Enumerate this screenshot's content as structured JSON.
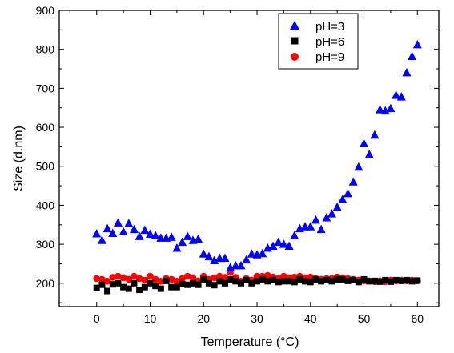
{
  "chart_data": {
    "type": "scatter",
    "xlabel": "Temperature (°C)",
    "ylabel": "Size (d.nm)",
    "xlim": [
      -7,
      64
    ],
    "ylim": [
      140,
      900
    ],
    "xticks": [
      0,
      10,
      20,
      30,
      40,
      50,
      60
    ],
    "yticks": [
      200,
      300,
      400,
      500,
      600,
      700,
      800,
      900
    ],
    "grid": false,
    "legend_position": "top-right",
    "series": [
      {
        "name": "pH=3",
        "marker": "triangle",
        "color": "#0000FF",
        "points": [
          [
            0,
            327
          ],
          [
            1,
            310
          ],
          [
            2,
            340
          ],
          [
            3,
            328
          ],
          [
            4,
            355
          ],
          [
            5,
            332
          ],
          [
            6,
            353
          ],
          [
            7,
            338
          ],
          [
            8,
            320
          ],
          [
            9,
            336
          ],
          [
            10,
            326
          ],
          [
            11,
            322
          ],
          [
            12,
            316
          ],
          [
            13,
            316
          ],
          [
            14,
            318
          ],
          [
            15,
            290
          ],
          [
            16,
            305
          ],
          [
            17,
            320
          ],
          [
            18,
            310
          ],
          [
            19,
            313
          ],
          [
            20,
            275
          ],
          [
            21,
            268
          ],
          [
            22,
            258
          ],
          [
            23,
            264
          ],
          [
            24,
            264
          ],
          [
            25,
            240
          ],
          [
            26,
            245
          ],
          [
            27,
            245
          ],
          [
            28,
            260
          ],
          [
            29,
            275
          ],
          [
            30,
            273
          ],
          [
            31,
            276
          ],
          [
            32,
            290
          ],
          [
            33,
            295
          ],
          [
            34,
            305
          ],
          [
            35,
            300
          ],
          [
            36,
            295
          ],
          [
            37,
            322
          ],
          [
            38,
            340
          ],
          [
            39,
            345
          ],
          [
            40,
            345
          ],
          [
            41,
            362
          ],
          [
            42,
            338
          ],
          [
            43,
            368
          ],
          [
            44,
            378
          ],
          [
            45,
            395
          ],
          [
            46,
            415
          ],
          [
            47,
            430
          ],
          [
            48,
            460
          ],
          [
            49,
            498
          ],
          [
            50,
            558
          ],
          [
            51,
            530
          ],
          [
            52,
            580
          ],
          [
            53,
            645
          ],
          [
            54,
            642
          ],
          [
            55,
            648
          ],
          [
            56,
            682
          ],
          [
            57,
            678
          ],
          [
            58,
            740
          ],
          [
            59,
            782
          ],
          [
            60,
            812
          ]
        ]
      },
      {
        "name": "pH=6",
        "marker": "square",
        "color": "#000000",
        "points": [
          [
            0,
            188
          ],
          [
            1,
            196
          ],
          [
            2,
            180
          ],
          [
            3,
            197
          ],
          [
            4,
            200
          ],
          [
            5,
            190
          ],
          [
            6,
            186
          ],
          [
            7,
            200
          ],
          [
            8,
            183
          ],
          [
            9,
            190
          ],
          [
            10,
            200
          ],
          [
            11,
            193
          ],
          [
            12,
            186
          ],
          [
            13,
            206
          ],
          [
            14,
            190
          ],
          [
            15,
            190
          ],
          [
            16,
            198
          ],
          [
            17,
            196
          ],
          [
            18,
            200
          ],
          [
            19,
            196
          ],
          [
            20,
            210
          ],
          [
            21,
            200
          ],
          [
            22,
            195
          ],
          [
            23,
            205
          ],
          [
            24,
            200
          ],
          [
            25,
            210
          ],
          [
            26,
            205
          ],
          [
            27,
            200
          ],
          [
            28,
            208
          ],
          [
            29,
            200
          ],
          [
            30,
            205
          ],
          [
            31,
            210
          ],
          [
            32,
            205
          ],
          [
            33,
            208
          ],
          [
            34,
            203
          ],
          [
            35,
            205
          ],
          [
            36,
            205
          ],
          [
            37,
            203
          ],
          [
            38,
            210
          ],
          [
            39,
            205
          ],
          [
            40,
            203
          ],
          [
            41,
            210
          ],
          [
            42,
            205
          ],
          [
            43,
            208
          ],
          [
            44,
            205
          ],
          [
            45,
            210
          ],
          [
            46,
            210
          ],
          [
            47,
            206
          ],
          [
            48,
            208
          ],
          [
            49,
            203
          ],
          [
            50,
            210
          ],
          [
            51,
            205
          ],
          [
            52,
            206
          ],
          [
            53,
            204
          ],
          [
            54,
            208
          ],
          [
            55,
            204
          ],
          [
            56,
            208
          ],
          [
            57,
            206
          ],
          [
            58,
            208
          ],
          [
            59,
            205
          ],
          [
            60,
            207
          ]
        ]
      },
      {
        "name": "pH=9",
        "marker": "circle",
        "color": "#FF0000",
        "points": [
          [
            0,
            212
          ],
          [
            1,
            210
          ],
          [
            2,
            205
          ],
          [
            3,
            215
          ],
          [
            4,
            218
          ],
          [
            5,
            214
          ],
          [
            6,
            210
          ],
          [
            7,
            218
          ],
          [
            8,
            212
          ],
          [
            9,
            208
          ],
          [
            10,
            218
          ],
          [
            11,
            210
          ],
          [
            12,
            205
          ],
          [
            13,
            212
          ],
          [
            14,
            210
          ],
          [
            15,
            205
          ],
          [
            16,
            212
          ],
          [
            17,
            218
          ],
          [
            18,
            214
          ],
          [
            19,
            206
          ],
          [
            20,
            218
          ],
          [
            21,
            210
          ],
          [
            22,
            214
          ],
          [
            23,
            218
          ],
          [
            24,
            215
          ],
          [
            25,
            228
          ],
          [
            26,
            215
          ],
          [
            27,
            205
          ],
          [
            28,
            212
          ],
          [
            29,
            208
          ],
          [
            30,
            218
          ],
          [
            31,
            218
          ],
          [
            32,
            220
          ],
          [
            33,
            216
          ],
          [
            34,
            212
          ],
          [
            35,
            218
          ],
          [
            36,
            214
          ],
          [
            37,
            216
          ],
          [
            38,
            218
          ],
          [
            39,
            214
          ],
          [
            40,
            216
          ],
          [
            41,
            212
          ],
          [
            42,
            210
          ],
          [
            43,
            212
          ],
          [
            44,
            212
          ],
          [
            45,
            216
          ],
          [
            46,
            214
          ],
          [
            47,
            212
          ],
          [
            48,
            210
          ],
          [
            49,
            208
          ],
          [
            50,
            206
          ],
          [
            51,
            206
          ],
          [
            52,
            204
          ],
          [
            53,
            206
          ],
          [
            54,
            204
          ],
          [
            55,
            208
          ],
          [
            56,
            206
          ],
          [
            57,
            208
          ],
          [
            58,
            206
          ],
          [
            59,
            208
          ],
          [
            60,
            206
          ]
        ]
      }
    ]
  }
}
